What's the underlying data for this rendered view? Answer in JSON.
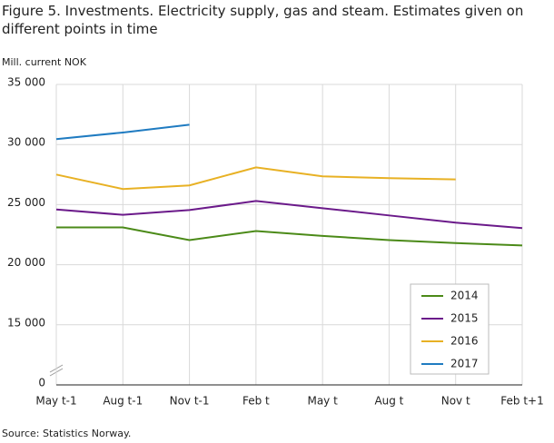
{
  "chart_data": {
    "type": "line",
    "title": "Figure 5. Investments. Electricity supply, gas and steam. Estimates given on different points in time",
    "y_label": "Mill. current NOK",
    "source": "Source: Statistics Norway.",
    "categories": [
      "May t-1",
      "Aug t-1",
      "Nov t-1",
      "Feb t",
      "May t",
      "Aug t",
      "Nov t",
      "Feb t+1"
    ],
    "series": [
      {
        "name": "2014",
        "color": "#4b8a18",
        "values": [
          23100,
          23100,
          22050,
          22800,
          22400,
          22050,
          21800,
          21600
        ]
      },
      {
        "name": "2015",
        "color": "#6b1a8a",
        "values": [
          24600,
          24150,
          24550,
          25300,
          24700,
          24100,
          23500,
          23050
        ]
      },
      {
        "name": "2016",
        "color": "#e8b124",
        "values": [
          27500,
          26300,
          26600,
          28100,
          27350,
          27200,
          27100,
          null
        ]
      },
      {
        "name": "2017",
        "color": "#1f7bc1",
        "values": [
          30450,
          31000,
          31650,
          null,
          null,
          null,
          null,
          null
        ]
      }
    ],
    "ylim": [
      0,
      35000
    ],
    "axis_break": [
      0,
      10000
    ],
    "yticks": [
      0,
      {
        "value": 15000,
        "label": "15 000"
      },
      {
        "value": 20000,
        "label": "20 000"
      },
      {
        "value": 25000,
        "label": "25 000"
      },
      {
        "value": 30000,
        "label": "30 000"
      },
      {
        "value": 35000,
        "label": "35 000"
      }
    ],
    "grid": true
  }
}
